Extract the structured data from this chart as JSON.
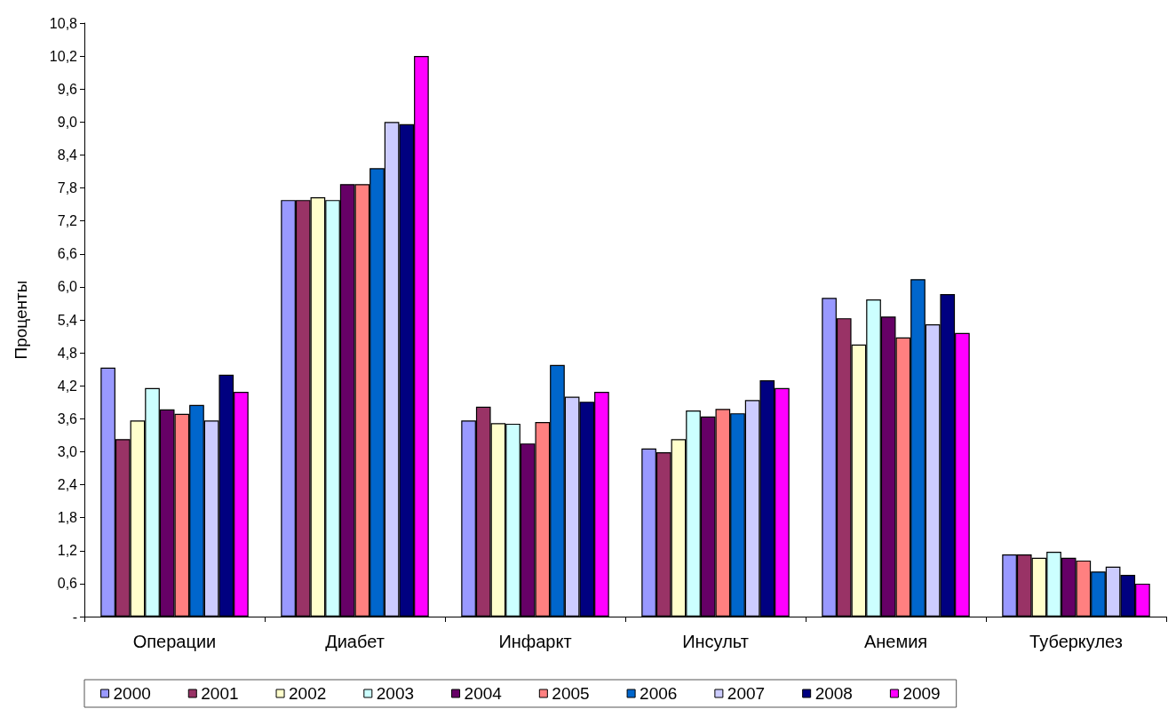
{
  "chart_data": {
    "type": "bar",
    "ylabel": "Проценты",
    "categories": [
      "Операции",
      "Диабет",
      "Инфаркт",
      "Инсульт",
      "Анемия",
      "Туберкулез"
    ],
    "series": [
      {
        "name": "2000",
        "color": "#9999ff",
        "values": [
          4.53,
          7.58,
          3.57,
          3.06,
          5.8,
          1.13
        ]
      },
      {
        "name": "2001",
        "color": "#993366",
        "values": [
          3.23,
          7.58,
          3.82,
          2.99,
          5.43,
          1.13
        ]
      },
      {
        "name": "2002",
        "color": "#ffffcc",
        "values": [
          3.57,
          7.63,
          3.52,
          3.23,
          4.95,
          1.07
        ]
      },
      {
        "name": "2003",
        "color": "#ccffff",
        "values": [
          4.16,
          7.58,
          3.51,
          3.75,
          5.77,
          1.18
        ]
      },
      {
        "name": "2004",
        "color": "#660066",
        "values": [
          3.77,
          7.87,
          3.15,
          3.64,
          5.46,
          1.07
        ]
      },
      {
        "name": "2005",
        "color": "#ff8080",
        "values": [
          3.69,
          7.87,
          3.54,
          3.78,
          5.08,
          1.02
        ]
      },
      {
        "name": "2006",
        "color": "#0066cc",
        "values": [
          3.85,
          8.16,
          4.58,
          3.7,
          6.14,
          0.82
        ]
      },
      {
        "name": "2007",
        "color": "#ccccff",
        "values": [
          3.57,
          9.0,
          4.0,
          3.94,
          5.32,
          0.91
        ]
      },
      {
        "name": "2008",
        "color": "#000080",
        "values": [
          4.4,
          8.96,
          3.91,
          4.3,
          5.87,
          0.76
        ]
      },
      {
        "name": "2009",
        "color": "#ff00ff",
        "values": [
          4.09,
          10.2,
          4.09,
          4.16,
          5.16,
          0.6
        ]
      }
    ],
    "ylim": [
      0,
      10.8
    ],
    "yticks": [
      {
        "value": 0,
        "label": "-"
      },
      {
        "value": 0.6,
        "label": "0,6"
      },
      {
        "value": 1.2,
        "label": "1,2"
      },
      {
        "value": 1.8,
        "label": "1,8"
      },
      {
        "value": 2.4,
        "label": "2,4"
      },
      {
        "value": 3.0,
        "label": "3,0"
      },
      {
        "value": 3.6,
        "label": "3,6"
      },
      {
        "value": 4.2,
        "label": "4,2"
      },
      {
        "value": 4.8,
        "label": "4,8"
      },
      {
        "value": 5.4,
        "label": "5,4"
      },
      {
        "value": 6.0,
        "label": "6,0"
      },
      {
        "value": 6.6,
        "label": "6,6"
      },
      {
        "value": 7.2,
        "label": "7,2"
      },
      {
        "value": 7.8,
        "label": "7,8"
      },
      {
        "value": 8.4,
        "label": "8,4"
      },
      {
        "value": 9.0,
        "label": "9,0"
      },
      {
        "value": 9.6,
        "label": "9,6"
      },
      {
        "value": 10.2,
        "label": "10,2"
      },
      {
        "value": 10.8,
        "label": "10,8"
      }
    ],
    "grid": false,
    "legend": "bottom"
  }
}
